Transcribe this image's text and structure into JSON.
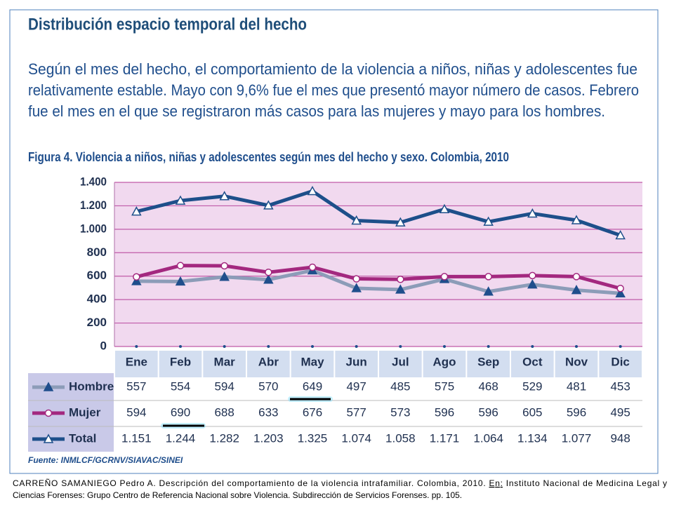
{
  "header": {
    "title": "Distribución espacio temporal del hecho",
    "paragraph": [
      "Según el mes del hecho, el comportamiento de la violencia a niños, niñas y adolescentes fue",
      "relativamente estable. Mayo con 9,6% fue el mes que presentó mayor número de casos. Febrero",
      "fue el mes en el que se registraron más casos para las mujeres y mayo para los hombres."
    ]
  },
  "chart_data": {
    "type": "line",
    "title": "Figura 4. Violencia a niños, niñas y adolescentes según mes del hecho y sexo. Colombia, 2010",
    "categories": [
      "Ene",
      "Feb",
      "Mar",
      "Abr",
      "May",
      "Jun",
      "Jul",
      "Ago",
      "Sep",
      "Oct",
      "Nov",
      "Dic"
    ],
    "series": [
      {
        "name": "Hombre",
        "color": "#8c9cb8",
        "marker": "triangle-filled",
        "values": [
          557,
          554,
          594,
          570,
          649,
          497,
          485,
          575,
          468,
          529,
          481,
          453
        ]
      },
      {
        "name": "Mujer",
        "color": "#a3287f",
        "marker": "circle-open",
        "values": [
          594,
          690,
          688,
          633,
          676,
          577,
          573,
          596,
          596,
          605,
          596,
          495
        ]
      },
      {
        "name": "Total",
        "color": "#1d4f8a",
        "marker": "triangle-open",
        "values": [
          1151,
          1244,
          1282,
          1203,
          1325,
          1074,
          1058,
          1171,
          1064,
          1134,
          1077,
          948
        ],
        "value_labels": [
          "1.151",
          "1.244",
          "1.282",
          "1.203",
          "1.325",
          "1.074",
          "1.058",
          "1.171",
          "1.064",
          "1.134",
          "1.077",
          "948"
        ]
      }
    ],
    "ylim": [
      0,
      1400
    ],
    "yticks": [
      0,
      200,
      400,
      600,
      800,
      {
        "value": 1000,
        "label": "1.000"
      },
      {
        "value": 1200,
        "label": "1.200"
      },
      {
        "value": 1400,
        "label": "1.400"
      }
    ],
    "grid": true,
    "source": "Fuente: INMLCF/GCRNV/SIAVAC/SINEI"
  },
  "caption": {
    "text_before": "CARREÑO SAMANIEGO Pedro A. Descripción del comportamiento de la violencia intrafamiliar. Colombia, 2010. ",
    "underlined": "En:",
    "text_after": " Instituto Nacional de Medicina Legal y",
    "second_line": "Ciencias Forenses: Grupo Centro de Referencia Nacional sobre Violencia. Subdirección de Servicios Forenses. pp. 105."
  }
}
